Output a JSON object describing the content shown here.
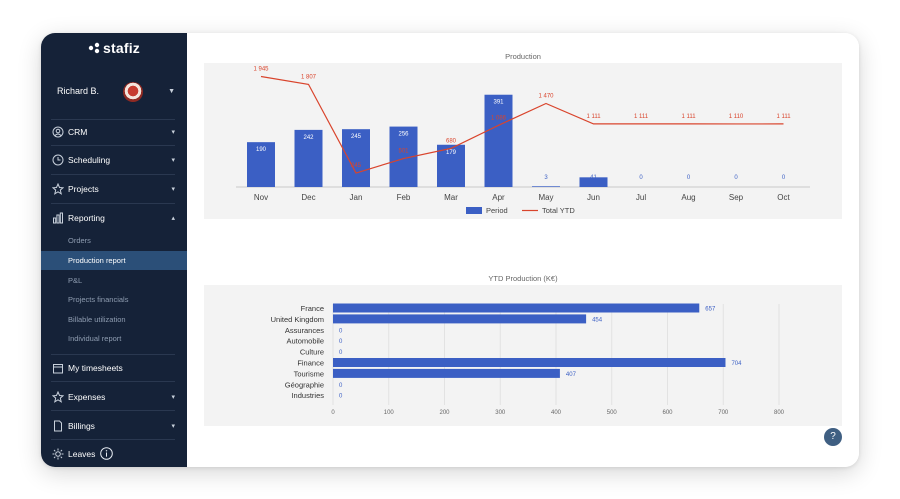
{
  "app": {
    "logo_text": "stafiz"
  },
  "user": {
    "name": "Richard B."
  },
  "sidebar": {
    "nav": [
      {
        "label": "CRM",
        "icon": "crm-icon"
      },
      {
        "label": "Scheduling",
        "icon": "clock-icon"
      },
      {
        "label": "Projects",
        "icon": "star-icon"
      },
      {
        "label": "Reporting",
        "icon": "chart-icon"
      },
      {
        "label": "My timesheets",
        "icon": "calendar-icon"
      },
      {
        "label": "Expenses",
        "icon": "star-icon"
      },
      {
        "label": "Billings",
        "icon": "document-icon"
      },
      {
        "label": "Leaves",
        "icon": "sun-icon"
      }
    ],
    "reporting_sub": [
      "Orders",
      "Production report",
      "P&L",
      "Projects financials",
      "Billable utilization",
      "Individual report"
    ],
    "active_sub": "Production report"
  },
  "colors": {
    "sidebar": "#152238",
    "active": "#2b4f78",
    "bar": "#3b5fc4",
    "line": "#d9442c"
  },
  "chart_data": [
    {
      "type": "bar",
      "title": "Production",
      "categories": [
        "Nov",
        "Dec",
        "Jan",
        "Feb",
        "Mar",
        "Apr",
        "May",
        "Jun",
        "Jul",
        "Aug",
        "Sep",
        "Oct"
      ],
      "series": [
        {
          "name": "Period",
          "type": "bar",
          "values": [
            190,
            242,
            245,
            256,
            179,
            391,
            3,
            41,
            0,
            0,
            0,
            0
          ]
        },
        {
          "name": "Total YTD",
          "type": "line",
          "values": [
            1945,
            1807,
            245,
            501,
            680,
            1086,
            1470,
            1111,
            1111,
            1111,
            1110,
            1111
          ]
        }
      ],
      "legend": "bottom"
    },
    {
      "type": "bar",
      "orientation": "horizontal",
      "title": "YTD Production (K€)",
      "categories": [
        "France",
        "United Kingdom",
        "Assurances",
        "Automobile",
        "Culture",
        "Finance",
        "Tourisme",
        "Géographie",
        "Industries"
      ],
      "values": [
        657,
        454,
        0,
        0,
        0,
        704,
        407,
        0,
        0
      ],
      "x_ticks": [
        0,
        100,
        200,
        300,
        400,
        500,
        600,
        700,
        800
      ],
      "xlim": [
        0,
        800
      ]
    }
  ]
}
